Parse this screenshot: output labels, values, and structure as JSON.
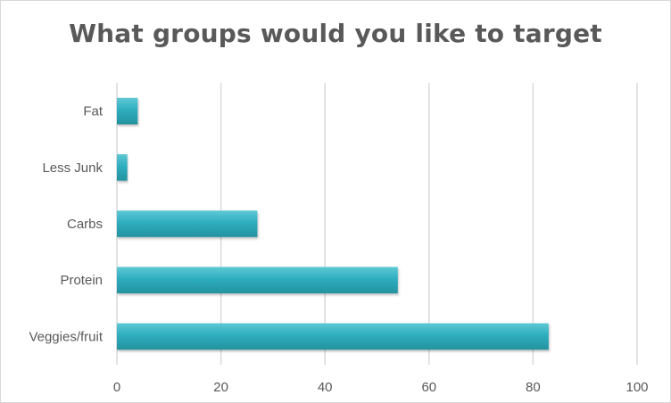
{
  "chart_data": {
    "type": "bar",
    "orientation": "horizontal",
    "title": "What groups would you like to target",
    "xlabel": "",
    "ylabel": "",
    "categories": [
      "Fat",
      "Less Junk",
      "Carbs",
      "Protein",
      "Veggies/fruit"
    ],
    "values": [
      4,
      2,
      27,
      54,
      83
    ],
    "xlim": [
      0,
      100
    ],
    "xticks": [
      0,
      20,
      40,
      60,
      80,
      100
    ],
    "grid": "vertical",
    "legend": "none",
    "colors": {
      "bar": "#2eaebf",
      "bar_light": "#5fc8d4",
      "bar_dark": "#24929f",
      "grid": "#d9d9d9",
      "text": "#595959"
    }
  }
}
